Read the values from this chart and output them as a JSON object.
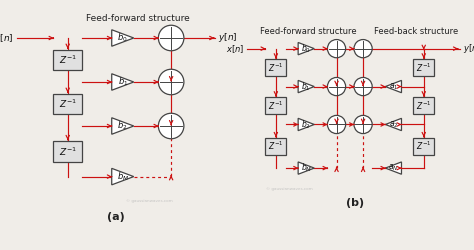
{
  "title_a": "Feed-forward structure",
  "title_b_left": "Feed-forward structure",
  "title_b_right": "Feed-back structure",
  "label_a": "(a)",
  "label_b": "(b)",
  "bg_color": "#f0ede8",
  "panel_bg": "#ffffff",
  "border_color": "#6699bb",
  "line_color": "#cc1111",
  "watermark": "© gaussianwaves.com"
}
